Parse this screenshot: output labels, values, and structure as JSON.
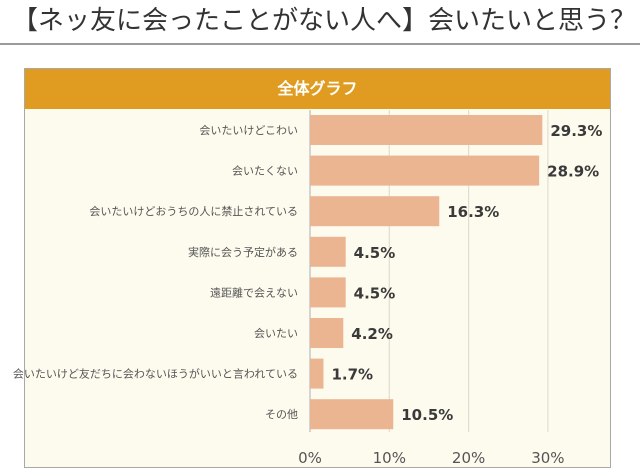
{
  "header": {
    "title": "【ネッ友に会ったことがない人へ】会いたいと思う？"
  },
  "panel": {
    "title": "全体グラフ",
    "colors": {
      "header": "#e09c20",
      "background": "#fdfbee",
      "bar": "#ebb592",
      "grid": "#e2ddd0"
    }
  },
  "chart_data": {
    "type": "bar",
    "orientation": "horizontal",
    "title": "全体グラフ",
    "xlabel": "",
    "ylabel": "",
    "xlim": [
      0,
      35
    ],
    "grid": true,
    "categories": [
      "会いたいけどこわい",
      "会いたくない",
      "会いたいけどおうちの人に禁止されている",
      "実際に会う予定がある",
      "遠距離で会えない",
      "会いたい",
      "会いたいけど友だちに会わないほうがいいと言われている",
      "その他"
    ],
    "values": [
      29.3,
      28.9,
      16.3,
      4.5,
      4.5,
      4.2,
      1.7,
      10.5
    ],
    "value_labels": [
      "29.3%",
      "28.9%",
      "16.3%",
      "4.5%",
      "4.5%",
      "4.2%",
      "1.7%",
      "10.5%"
    ],
    "ticks": [
      0,
      10,
      20,
      30
    ],
    "tick_labels": [
      "0%",
      "10%",
      "20%",
      "30%"
    ]
  }
}
